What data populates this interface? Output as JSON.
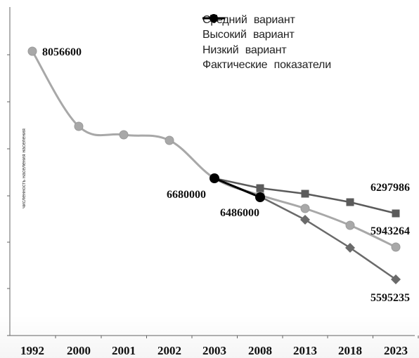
{
  "chart_data": {
    "type": "line",
    "categories": [
      "1992",
      "2000",
      "2001",
      "2002",
      "2003",
      "2008",
      "2013",
      "2018",
      "2023"
    ],
    "series": [
      {
        "name": "Средний вариант",
        "color": "#a8a8a8",
        "marker": "circle",
        "values": [
          8056600,
          7240000,
          7200000,
          7120000,
          6680000,
          6430000,
          6190000,
          5910000,
          5943264
        ]
      },
      {
        "name": "Высокий вариант",
        "color": "#5b5b5b",
        "marker": "square",
        "values": [
          null,
          null,
          null,
          null,
          6680000,
          6560000,
          6470000,
          6390000,
          6297986
        ]
      },
      {
        "name": "Низкий вариант",
        "color": "#6a6a6a",
        "marker": "diamond",
        "values": [
          null,
          null,
          null,
          null,
          6680000,
          6500000,
          6170000,
          5820000,
          5595235
        ]
      },
      {
        "name": "Фактические показатели",
        "color": "#000000",
        "marker": "circle",
        "values": [
          null,
          null,
          null,
          null,
          6680000,
          6486000,
          null,
          null,
          null
        ]
      }
    ],
    "data_labels": [
      "8056600",
      "6680000",
      "6486000",
      "6297986",
      "5943264",
      "5595235"
    ],
    "ylabel": "численность населения населения",
    "ylim": [
      5300000,
      8400000
    ],
    "grid": false,
    "legend_position": "top-right"
  }
}
